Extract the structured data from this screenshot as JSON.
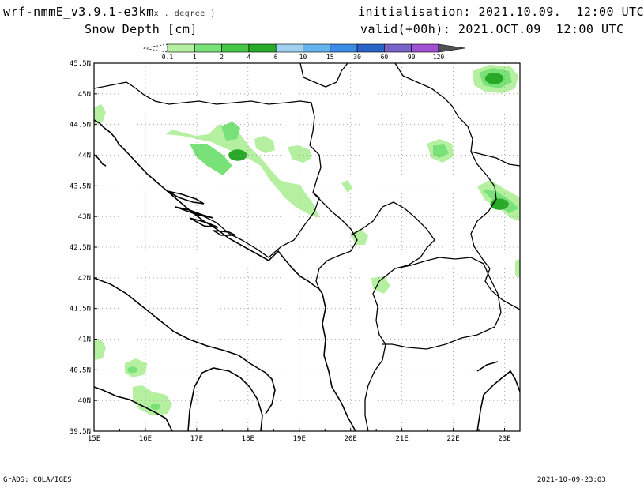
{
  "header": {
    "model": "wrf-nmmE_v3.9.1-e3km",
    "model_suffix": "x . degree )",
    "variable": "Snow Depth [cm]",
    "initialisation": "initialisation: 2021.10.09.  12:00 UTC",
    "valid": "valid(+00h): 2021.OCT.09  12:00 UTC"
  },
  "colorbar": {
    "levels": [
      "0.1",
      "1",
      "2",
      "4",
      "6",
      "10",
      "15",
      "30",
      "60",
      "90",
      "120"
    ],
    "colors": [
      "#b4f0a0",
      "#78e178",
      "#46c846",
      "#28aa28",
      "#a0d2f0",
      "#64b4f0",
      "#3c8ce6",
      "#2864c8",
      "#7864c8",
      "#a050d2",
      "#505050"
    ]
  },
  "map": {
    "lon_labels": [
      "15E",
      "16E",
      "17E",
      "18E",
      "19E",
      "20E",
      "21E",
      "22E",
      "23E"
    ],
    "lat_labels": [
      "45.5N",
      "45N",
      "44.5N",
      "44N",
      "43.5N",
      "43N",
      "42.5N",
      "42N",
      "41.5N",
      "41N",
      "40.5N",
      "40N",
      "39.5N"
    ],
    "snow_patches": [
      {
        "lon": 17.3,
        "lat": 44.0,
        "level": "1"
      },
      {
        "lon": 17.8,
        "lat": 44.0,
        "level": "4"
      },
      {
        "lon": 22.8,
        "lat": 45.25,
        "level": "4"
      },
      {
        "lon": 22.9,
        "lat": 43.2,
        "level": "4"
      },
      {
        "lon": 21.8,
        "lat": 44.05,
        "level": "1"
      },
      {
        "lon": 15.75,
        "lat": 40.5,
        "level": "1"
      },
      {
        "lon": 16.2,
        "lat": 39.9,
        "level": "1"
      }
    ]
  },
  "footer": {
    "left": "GrADS: COLA/IGES",
    "right": "2021-10-09-23:03"
  }
}
